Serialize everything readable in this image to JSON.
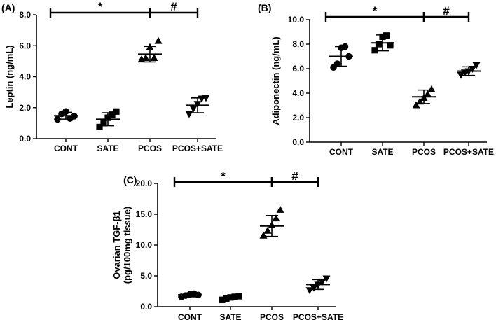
{
  "chart_data": [
    {
      "type": "scatter",
      "panel": "(A)",
      "ylabel": "Leptin (ng/mL)",
      "ylim": [
        0,
        8
      ],
      "yticks": [
        "0.0",
        "2.0",
        "4.0",
        "6.0",
        "8.0"
      ],
      "categories": [
        "CONT",
        "SATE",
        "PCOS",
        "PCOS+SATE"
      ],
      "markers": [
        "circle",
        "square",
        "triangle-up",
        "triangle-down"
      ],
      "points": [
        [
          1.25,
          1.6,
          1.75,
          1.3,
          1.45
        ],
        [
          0.75,
          1.0,
          1.35,
          1.55,
          1.75
        ],
        [
          5.1,
          5.2,
          5.9,
          5.2,
          6.3
        ],
        [
          1.6,
          1.95,
          2.25,
          2.6,
          2.65
        ]
      ],
      "mean": [
        1.48,
        1.25,
        5.45,
        2.15
      ],
      "sd": [
        0.22,
        0.42,
        0.5,
        0.48
      ],
      "significance": [
        {
          "from": 0,
          "to": 2,
          "symbol": "*"
        },
        {
          "from": 2,
          "to": 3,
          "symbol": "#"
        }
      ]
    },
    {
      "type": "scatter",
      "panel": "(B)",
      "ylabel": "Adiponectin (ng/mL)",
      "ylim": [
        0,
        10
      ],
      "yticks": [
        "0.0",
        "2.0",
        "4.0",
        "6.0",
        "8.0",
        "10.0"
      ],
      "categories": [
        "CONT",
        "SATE",
        "PCOS",
        "PCOS+SATE"
      ],
      "markers": [
        "circle",
        "square",
        "triangle-up",
        "triangle-down"
      ],
      "points": [
        [
          6.1,
          6.4,
          7.7,
          7.8,
          7.0
        ],
        [
          7.5,
          8.0,
          8.6,
          8.7,
          7.9
        ],
        [
          3.0,
          3.3,
          3.6,
          3.9,
          4.3
        ],
        [
          5.5,
          5.7,
          5.8,
          6.0,
          6.3
        ]
      ],
      "mean": [
        7.0,
        8.1,
        3.7,
        5.8
      ],
      "sd": [
        0.8,
        0.65,
        0.55,
        0.35
      ],
      "significance": [
        {
          "from": 0,
          "to": 2,
          "symbol": "*"
        },
        {
          "from": 2,
          "to": 3,
          "symbol": "#"
        }
      ]
    },
    {
      "type": "scatter",
      "panel": "(C)",
      "ylabel": "Ovarian TGF-β1",
      "ylabel2": "(pg/100mg tissue)",
      "ylim": [
        0,
        20
      ],
      "yticks": [
        "0.0",
        "5.0",
        "10.0",
        "15.0",
        "20.0"
      ],
      "categories": [
        "CONT",
        "SATE",
        "PCOS",
        "PCOS+SATE"
      ],
      "markers": [
        "circle",
        "square",
        "triangle-up",
        "triangle-down"
      ],
      "points": [
        [
          1.6,
          1.8,
          2.0,
          2.1,
          1.9
        ],
        [
          1.1,
          1.3,
          1.5,
          1.6,
          1.7
        ],
        [
          11.5,
          12.3,
          13.2,
          14.3,
          15.7
        ],
        [
          2.7,
          3.1,
          3.6,
          4.1,
          4.6
        ]
      ],
      "mean": [
        1.9,
        1.5,
        13.1,
        3.6
      ],
      "sd": [
        0.3,
        0.25,
        1.7,
        0.8
      ],
      "significance": [
        {
          "from": 0,
          "to": 2,
          "symbol": "*"
        },
        {
          "from": 2,
          "to": 3,
          "symbol": "#"
        }
      ]
    }
  ]
}
